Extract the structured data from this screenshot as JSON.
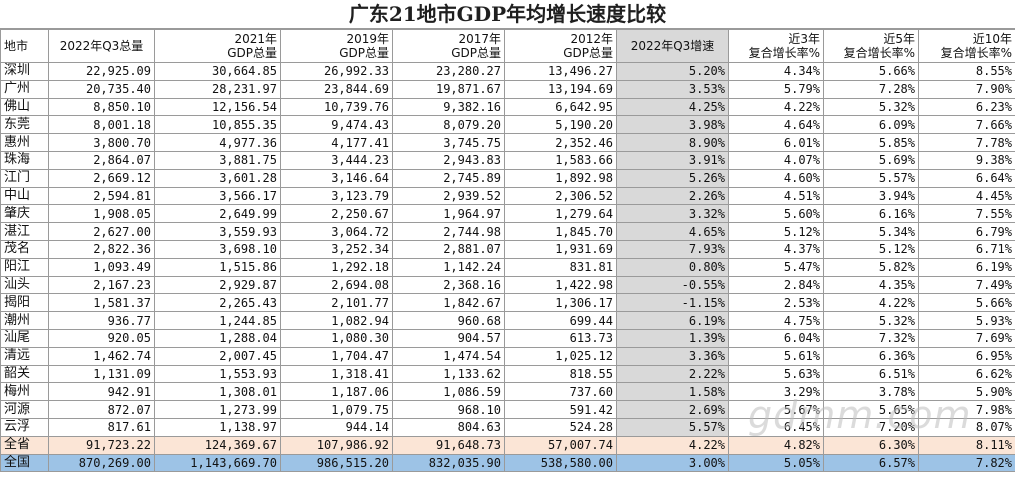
{
  "title": "广东21地市GDP年均增长速度比较",
  "headers": {
    "city": "地市",
    "q3_2022": "2022年Q3总量",
    "y2021": [
      "2021年",
      "GDP总量"
    ],
    "y2019": [
      "2019年",
      "GDP总量"
    ],
    "y2017": [
      "2017年",
      "GDP总量"
    ],
    "y2012": [
      "2012年",
      "GDP总量"
    ],
    "growth_q3": "2022年Q3增速",
    "cagr3": [
      "近3年",
      "复合增长率%"
    ],
    "cagr5": [
      "近5年",
      "复合增长率%"
    ],
    "cagr10": [
      "近10年",
      "复合增长率%"
    ]
  },
  "rows": [
    [
      "深圳",
      "22,925.09",
      "30,664.85",
      "26,992.33",
      "23,280.27",
      "13,496.27",
      "5.20%",
      "4.34%",
      "5.66%",
      "8.55%"
    ],
    [
      "广州",
      "20,735.40",
      "28,231.97",
      "23,844.69",
      "19,871.67",
      "13,194.69",
      "3.53%",
      "5.79%",
      "7.28%",
      "7.90%"
    ],
    [
      "佛山",
      "8,850.10",
      "12,156.54",
      "10,739.76",
      "9,382.16",
      "6,642.95",
      "4.25%",
      "4.22%",
      "5.32%",
      "6.23%"
    ],
    [
      "东莞",
      "8,001.18",
      "10,855.35",
      "9,474.43",
      "8,079.20",
      "5,190.20",
      "3.98%",
      "4.64%",
      "6.09%",
      "7.66%"
    ],
    [
      "惠州",
      "3,800.70",
      "4,977.36",
      "4,177.41",
      "3,745.75",
      "2,352.46",
      "8.90%",
      "6.01%",
      "5.85%",
      "7.78%"
    ],
    [
      "珠海",
      "2,864.07",
      "3,881.75",
      "3,444.23",
      "2,943.83",
      "1,583.66",
      "3.91%",
      "4.07%",
      "5.69%",
      "9.38%"
    ],
    [
      "江门",
      "2,669.12",
      "3,601.28",
      "3,146.64",
      "2,745.89",
      "1,892.98",
      "5.26%",
      "4.60%",
      "5.57%",
      "6.64%"
    ],
    [
      "中山",
      "2,594.81",
      "3,566.17",
      "3,123.79",
      "2,939.52",
      "2,306.52",
      "2.26%",
      "4.51%",
      "3.94%",
      "4.45%"
    ],
    [
      "肇庆",
      "1,908.05",
      "2,649.99",
      "2,250.67",
      "1,964.97",
      "1,279.64",
      "3.32%",
      "5.60%",
      "6.16%",
      "7.55%"
    ],
    [
      "湛江",
      "2,627.00",
      "3,559.93",
      "3,064.72",
      "2,744.98",
      "1,845.70",
      "4.65%",
      "5.12%",
      "5.34%",
      "6.79%"
    ],
    [
      "茂名",
      "2,822.36",
      "3,698.10",
      "3,252.34",
      "2,881.07",
      "1,931.69",
      "7.93%",
      "4.37%",
      "5.12%",
      "6.71%"
    ],
    [
      "阳江",
      "1,093.49",
      "1,515.86",
      "1,292.18",
      "1,142.24",
      "831.81",
      "0.80%",
      "5.47%",
      "5.82%",
      "6.19%"
    ],
    [
      "汕头",
      "2,167.23",
      "2,929.87",
      "2,694.08",
      "2,368.16",
      "1,422.98",
      "-0.55%",
      "2.84%",
      "4.35%",
      "7.49%"
    ],
    [
      "揭阳",
      "1,581.37",
      "2,265.43",
      "2,101.77",
      "1,842.67",
      "1,306.17",
      "-1.15%",
      "2.53%",
      "4.22%",
      "5.66%"
    ],
    [
      "潮州",
      "936.77",
      "1,244.85",
      "1,082.94",
      "960.68",
      "699.44",
      "6.19%",
      "4.75%",
      "5.32%",
      "5.93%"
    ],
    [
      "汕尾",
      "920.05",
      "1,288.04",
      "1,080.30",
      "904.57",
      "613.73",
      "1.39%",
      "6.04%",
      "7.32%",
      "7.69%"
    ],
    [
      "清远",
      "1,462.74",
      "2,007.45",
      "1,704.47",
      "1,474.54",
      "1,025.12",
      "3.36%",
      "5.61%",
      "6.36%",
      "6.95%"
    ],
    [
      "韶关",
      "1,131.09",
      "1,553.93",
      "1,318.41",
      "1,133.62",
      "818.55",
      "2.22%",
      "5.63%",
      "6.51%",
      "6.62%"
    ],
    [
      "梅州",
      "942.91",
      "1,308.01",
      "1,187.06",
      "1,086.59",
      "737.60",
      "1.58%",
      "3.29%",
      "3.78%",
      "5.90%"
    ],
    [
      "河源",
      "872.07",
      "1,273.99",
      "1,079.75",
      "968.10",
      "591.42",
      "2.69%",
      "5.67%",
      "5.65%",
      "7.98%"
    ],
    [
      "云浮",
      "817.61",
      "1,138.97",
      "944.14",
      "804.63",
      "524.28",
      "5.57%",
      "6.45%",
      "7.20%",
      "8.07%"
    ]
  ],
  "province_row": [
    "全省",
    "91,723.22",
    "124,369.67",
    "107,986.92",
    "91,648.73",
    "57,007.74",
    "4.22%",
    "4.82%",
    "6.30%",
    "8.11%"
  ],
  "nation_row": [
    "全国",
    "870,269.00",
    "1,143,669.70",
    "986,515.20",
    "832,035.90",
    "538,580.00",
    "3.00%",
    "5.05%",
    "6.57%",
    "7.82%"
  ],
  "watermark": "gdmm.com"
}
